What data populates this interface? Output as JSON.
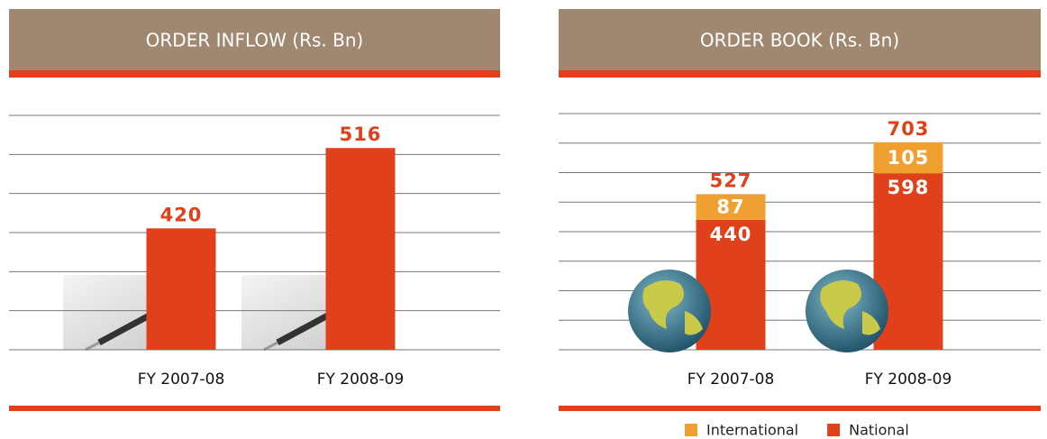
{
  "chart_data": [
    {
      "type": "bar",
      "title": "ORDER INFLOW (Rs. Bn)",
      "categories": [
        "FY 2007-08",
        "FY 2008-09"
      ],
      "values": [
        420,
        516
      ],
      "color": "#e0401a",
      "ylim": [
        275,
        555
      ]
    },
    {
      "type": "stacked_bar",
      "title": "ORDER BOOK (Rs. Bn)",
      "categories": [
        "FY 2007-08",
        "FY 2008-09"
      ],
      "series": [
        {
          "name": "National",
          "color": "#e0401a",
          "values": [
            440,
            598
          ]
        },
        {
          "name": "International",
          "color": "#f0a030",
          "values": [
            87,
            105
          ]
        }
      ],
      "totals": [
        527,
        703
      ],
      "ylim": [
        0,
        800
      ],
      "legend": "bottom"
    }
  ]
}
